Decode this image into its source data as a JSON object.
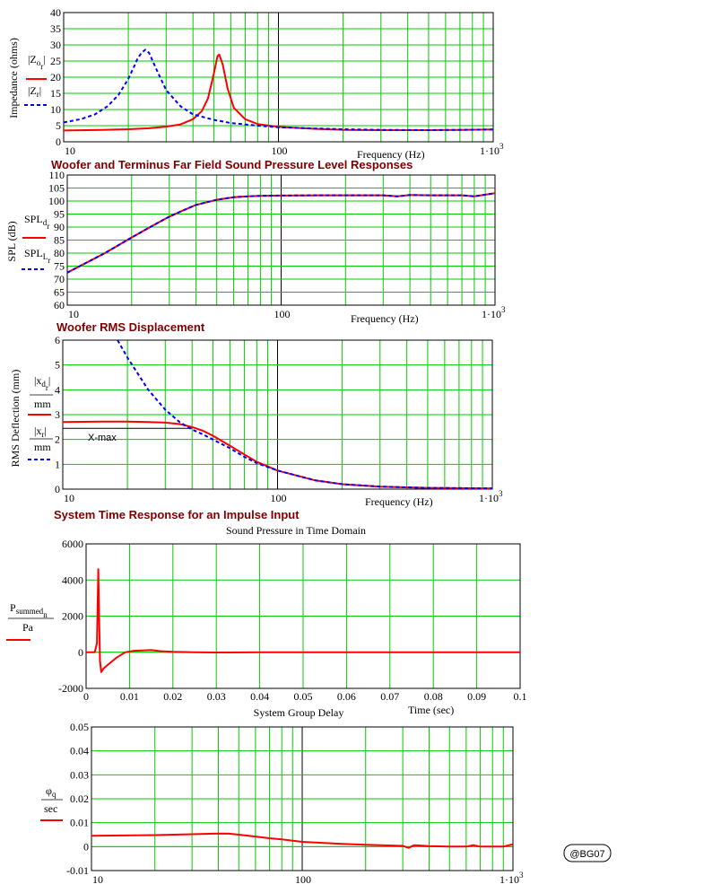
{
  "colors": {
    "grid": "#00cc00",
    "series_red": "#ff0000",
    "series_blue": "#0000ff",
    "heading": "#800000"
  },
  "charts": {
    "impedance": {
      "ylabel": "Impedance (ohms)",
      "xlabel": "Frequency (Hz)",
      "legend": [
        {
          "base": "Z",
          "sub1": "o",
          "sub2": "r",
          "abs": true,
          "color": "#ff0000",
          "dash": false
        },
        {
          "base": "Z",
          "sub1": "r",
          "sub2": "",
          "abs": true,
          "color": "#0000ff",
          "dash": true
        }
      ]
    },
    "spl": {
      "heading": "Woofer and Terminus Far Field Sound Pressure Level Responses",
      "ylabel": "SPL (dB)",
      "xlabel": "Frequency (Hz)",
      "legend": [
        {
          "base": "SPL",
          "sub1": "d",
          "sub2": "r",
          "color": "#ff0000",
          "dash": false
        },
        {
          "base": "SPL",
          "sub1": "L",
          "sub2": "r",
          "color": "#0000ff",
          "dash": true
        }
      ]
    },
    "displacement": {
      "heading": "Woofer RMS Displacement",
      "ylabel": "RMS Deflection (mm)",
      "xlabel": "Frequency (Hz)",
      "xmax_label": "X-max",
      "legend": [
        {
          "base": "x",
          "sub1": "d",
          "sub2": "r",
          "den": "mm",
          "color": "#ff0000",
          "dash": false
        },
        {
          "base": "x",
          "sub1": "r",
          "sub2": "",
          "den": "mm",
          "color": "#0000ff",
          "dash": true
        }
      ]
    },
    "time": {
      "heading": "System Time Response for an Impulse Input",
      "title": "Sound Pressure in Time Domain",
      "xlabel": "Time (sec)",
      "legend": [
        {
          "base": "P",
          "sub1": "summed",
          "sub2": "n",
          "den": "Pa",
          "color": "#ff0000"
        }
      ]
    },
    "delay": {
      "title": "System Group Delay",
      "legend": [
        {
          "base": "φ",
          "sub1": "q",
          "den": "sec",
          "color": "#ff0000"
        }
      ]
    }
  },
  "watermark": "@BG07",
  "chart_data": [
    {
      "type": "line",
      "title": "",
      "xlabel": "Frequency (Hz)",
      "ylabel": "Impedance (ohms)",
      "xscale": "log",
      "xlim": [
        10,
        1000
      ],
      "ylim": [
        0,
        40
      ],
      "xticks": [
        "10",
        "100",
        "1·10^3"
      ],
      "yticks": [
        0,
        5,
        10,
        15,
        20,
        25,
        30,
        35,
        40
      ],
      "grid": true,
      "series": [
        {
          "name": "|Zo_r|",
          "color": "#ff0000",
          "dash": false,
          "x": [
            10,
            15,
            20,
            25,
            30,
            35,
            40,
            44,
            47,
            50,
            52,
            53,
            55,
            58,
            62,
            70,
            80,
            100,
            150,
            200,
            300,
            500,
            700,
            1000
          ],
          "y": [
            3.5,
            3.7,
            3.9,
            4.2,
            4.7,
            5.4,
            7.0,
            9.5,
            13.5,
            21.0,
            26.5,
            27.0,
            24.0,
            16.5,
            10.5,
            7.0,
            5.5,
            4.6,
            4.0,
            3.7,
            3.6,
            3.6,
            3.7,
            3.8
          ]
        },
        {
          "name": "|Z_r|",
          "color": "#0000ff",
          "dash": true,
          "x": [
            10,
            12,
            14,
            16,
            18,
            20,
            21,
            22,
            23,
            24,
            25,
            27,
            30,
            35,
            40,
            50,
            60,
            80,
            100,
            150,
            200,
            300,
            500,
            700,
            1000
          ],
          "y": [
            6.0,
            7.0,
            8.5,
            11.0,
            14.5,
            19.5,
            22.5,
            25.5,
            27.5,
            28.5,
            27.5,
            22.5,
            16.0,
            11.0,
            8.5,
            6.8,
            5.8,
            5.0,
            4.5,
            4.1,
            3.9,
            3.7,
            3.6,
            3.7,
            3.8
          ]
        }
      ]
    },
    {
      "type": "line",
      "title": "Woofer and Terminus Far Field Sound Pressure Level Responses",
      "xlabel": "Frequency (Hz)",
      "ylabel": "SPL (dB)",
      "xscale": "log",
      "xlim": [
        10,
        1000
      ],
      "ylim": [
        60,
        110
      ],
      "xticks": [
        "10",
        "100",
        "1·10^3"
      ],
      "yticks": [
        60,
        65,
        70,
        75,
        80,
        85,
        90,
        95,
        100,
        105,
        110
      ],
      "grid": true,
      "series": [
        {
          "name": "SPLd_r",
          "color": "#ff0000",
          "dash": false,
          "x": [
            10,
            15,
            20,
            25,
            30,
            35,
            40,
            50,
            60,
            70,
            80,
            100,
            150,
            200,
            300,
            350,
            400,
            500,
            700,
            800,
            1000
          ],
          "y": [
            72.5,
            80,
            86,
            90.5,
            94,
            96.5,
            98.5,
            100.5,
            101.5,
            101.8,
            102,
            102.1,
            102.2,
            102.2,
            102.2,
            101.8,
            102.3,
            102.2,
            102.2,
            101.8,
            103
          ]
        },
        {
          "name": "SPLL_r",
          "color": "#0000ff",
          "dash": true,
          "x": [
            10,
            15,
            20,
            25,
            30,
            35,
            40,
            50,
            60,
            70,
            80,
            100,
            150,
            200,
            300,
            350,
            400,
            500,
            700,
            800,
            1000
          ],
          "y": [
            72.5,
            80,
            86,
            90.5,
            94,
            96.5,
            98.5,
            100.5,
            101.5,
            101.8,
            102,
            102.1,
            102.2,
            102.2,
            102.2,
            101.8,
            102.3,
            102.2,
            102.2,
            101.8,
            103
          ]
        }
      ]
    },
    {
      "type": "line",
      "title": "Woofer RMS Displacement",
      "xlabel": "Frequency (Hz)",
      "ylabel": "RMS Deflection (mm)",
      "xscale": "log",
      "xlim": [
        10,
        1000
      ],
      "ylim": [
        0,
        6
      ],
      "xticks": [
        "10",
        "100",
        "1·10^3"
      ],
      "yticks": [
        0,
        1,
        2,
        3,
        4,
        5,
        6
      ],
      "grid": true,
      "annotations": [
        {
          "text": "X-max",
          "y": 2.45
        }
      ],
      "series": [
        {
          "name": "|xd_r|/mm",
          "color": "#ff0000",
          "dash": false,
          "x": [
            10,
            15,
            20,
            25,
            30,
            35,
            40,
            45,
            50,
            60,
            70,
            80,
            100,
            150,
            200,
            300,
            500,
            700,
            1000
          ],
          "y": [
            2.7,
            2.72,
            2.72,
            2.7,
            2.68,
            2.62,
            2.5,
            2.35,
            2.15,
            1.75,
            1.4,
            1.1,
            0.75,
            0.35,
            0.2,
            0.1,
            0.05,
            0.04,
            0.03
          ]
        },
        {
          "name": "|x_r|/mm",
          "color": "#0000ff",
          "dash": true,
          "x": [
            18,
            20,
            25,
            30,
            35,
            40,
            45,
            50,
            60,
            70,
            80,
            100,
            150,
            200,
            300,
            500,
            700,
            1000
          ],
          "y": [
            6.0,
            5.3,
            4.0,
            3.2,
            2.7,
            2.4,
            2.2,
            2.0,
            1.65,
            1.3,
            1.05,
            0.75,
            0.35,
            0.2,
            0.1,
            0.05,
            0.04,
            0.03
          ]
        }
      ]
    },
    {
      "type": "line",
      "title": "Sound Pressure in Time Domain",
      "xlabel": "Time (sec)",
      "ylabel": "Psummed_n / Pa",
      "xlim": [
        0,
        0.1
      ],
      "ylim": [
        -2000,
        6000
      ],
      "xticks": [
        0,
        0.01,
        0.02,
        0.03,
        0.04,
        0.05,
        0.06,
        0.07,
        0.08,
        0.09,
        0.1
      ],
      "yticks": [
        -2000,
        0,
        2000,
        4000,
        6000
      ],
      "grid": true,
      "series": [
        {
          "name": "Psummed_n/Pa",
          "color": "#ff0000",
          "x": [
            0,
            0.002,
            0.0025,
            0.0028,
            0.003,
            0.0032,
            0.0035,
            0.004,
            0.005,
            0.007,
            0.009,
            0.011,
            0.013,
            0.015,
            0.017,
            0.02,
            0.025,
            0.03,
            0.04,
            0.05,
            0.06,
            0.07,
            0.08,
            0.09,
            0.1
          ],
          "y": [
            0,
            0,
            500,
            4600,
            2000,
            -500,
            -1100,
            -900,
            -700,
            -300,
            0,
            80,
            100,
            120,
            60,
            20,
            0,
            -10,
            0,
            0,
            0,
            0,
            0,
            0,
            0
          ]
        }
      ]
    },
    {
      "type": "line",
      "title": "System Group Delay",
      "xlabel": "",
      "ylabel": "φq / sec",
      "xscale": "log",
      "xlim": [
        10,
        1000
      ],
      "ylim": [
        -0.01,
        0.05
      ],
      "xticks": [
        "10",
        "100",
        "1·10^3"
      ],
      "yticks": [
        -0.01,
        0,
        0.01,
        0.02,
        0.03,
        0.04,
        0.05
      ],
      "grid": true,
      "series": [
        {
          "name": "φq/sec",
          "color": "#ff0000",
          "x": [
            10,
            20,
            30,
            40,
            45,
            50,
            60,
            70,
            80,
            100,
            150,
            200,
            300,
            320,
            340,
            400,
            500,
            600,
            650,
            700,
            800,
            900,
            1000
          ],
          "y": [
            0.0045,
            0.0048,
            0.0052,
            0.0055,
            0.0054,
            0.005,
            0.0042,
            0.0035,
            0.003,
            0.002,
            0.0012,
            0.0008,
            0.0003,
            -0.0005,
            0.0006,
            0.0002,
            0.0,
            0.0,
            0.0006,
            0.0,
            0.0,
            0.0,
            0.001
          ]
        }
      ]
    }
  ]
}
